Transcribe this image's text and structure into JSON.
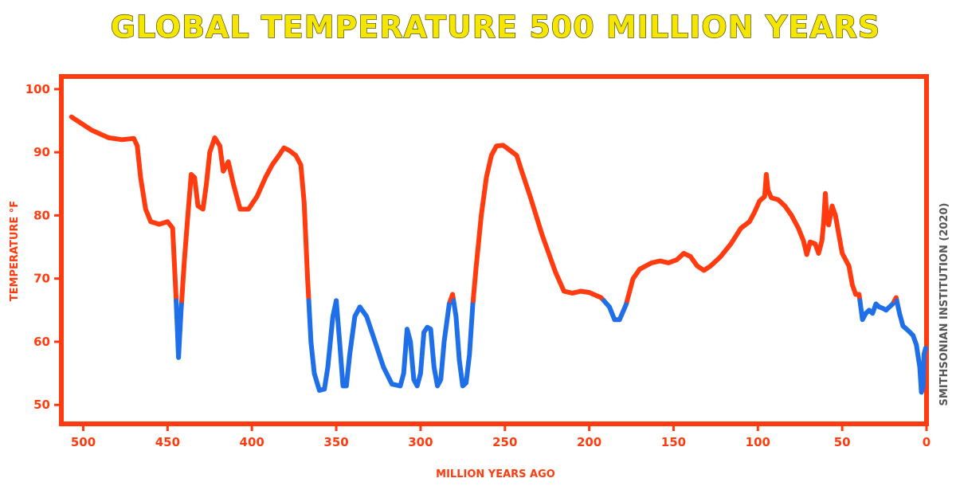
{
  "chart_data": {
    "type": "line",
    "title": "GLOBAL TEMPERATURE 500 MILLION YEARS",
    "xlabel": "MILLION YEARS AGO",
    "ylabel": "TEMPERATURE °F",
    "credit": "SMITHSONIAN INSTITUTION (2020)",
    "xlim": [
      513,
      0
    ],
    "ylim": [
      47,
      102
    ],
    "x_ticks": [
      500,
      450,
      400,
      350,
      300,
      250,
      200,
      150,
      100,
      50,
      0
    ],
    "y_ticks": [
      100,
      90,
      80,
      70,
      60,
      50
    ],
    "grid": false,
    "threshold": 66.5,
    "colors": {
      "warm": "#ff3b0f",
      "cold": "#1e6fe8",
      "axis": "#ff3b0f",
      "title": "#f5e600"
    },
    "series": [
      {
        "values": [
          [
            507,
            95.6
          ],
          [
            495,
            93.5
          ],
          [
            485,
            92.3
          ],
          [
            477,
            92.0
          ],
          [
            470,
            92.2
          ],
          [
            468,
            91.0
          ],
          [
            466,
            86.0
          ],
          [
            463,
            81.0
          ],
          [
            460,
            79.0
          ],
          [
            455,
            78.6
          ],
          [
            450,
            79.0
          ],
          [
            447,
            78.0
          ],
          [
            445,
            67.0
          ],
          [
            443.5,
            57.5
          ],
          [
            442,
            65.0
          ],
          [
            440,
            73.0
          ],
          [
            438,
            80.0
          ],
          [
            436,
            86.5
          ],
          [
            434,
            86.0
          ],
          [
            432,
            81.5
          ],
          [
            429,
            81.0
          ],
          [
            427,
            85.0
          ],
          [
            425,
            90.0
          ],
          [
            422,
            92.3
          ],
          [
            419,
            91.0
          ],
          [
            417,
            87.0
          ],
          [
            414,
            88.5
          ],
          [
            411,
            85.0
          ],
          [
            407,
            81.0
          ],
          [
            402,
            81.0
          ],
          [
            397,
            83.0
          ],
          [
            392,
            86.0
          ],
          [
            388,
            88.0
          ],
          [
            384,
            89.5
          ],
          [
            381,
            90.7
          ],
          [
            378,
            90.3
          ],
          [
            374,
            89.5
          ],
          [
            371,
            88.0
          ],
          [
            369,
            82.0
          ],
          [
            367,
            70.0
          ],
          [
            365,
            60.0
          ],
          [
            363,
            55.0
          ],
          [
            360,
            52.3
          ],
          [
            357,
            52.5
          ],
          [
            355,
            56.0
          ],
          [
            352,
            64.0
          ],
          [
            350,
            66.5
          ],
          [
            348,
            60.0
          ],
          [
            346,
            53.0
          ],
          [
            344,
            53.0
          ],
          [
            342,
            58.0
          ],
          [
            339,
            64.0
          ],
          [
            336,
            65.5
          ],
          [
            332,
            64.0
          ],
          [
            327,
            60.0
          ],
          [
            322,
            56.0
          ],
          [
            317,
            53.3
          ],
          [
            312,
            53.0
          ],
          [
            310,
            55.0
          ],
          [
            308,
            62.0
          ],
          [
            306,
            60.0
          ],
          [
            304,
            54.0
          ],
          [
            302,
            53.0
          ],
          [
            300,
            55.0
          ],
          [
            298,
            61.5
          ],
          [
            296,
            62.3
          ],
          [
            294,
            62.0
          ],
          [
            292,
            56.0
          ],
          [
            290,
            53.0
          ],
          [
            288,
            54.0
          ],
          [
            286,
            60.0
          ],
          [
            283,
            66.0
          ],
          [
            281,
            67.5
          ],
          [
            279,
            64.0
          ],
          [
            277,
            57.0
          ],
          [
            275,
            53.0
          ],
          [
            273,
            53.5
          ],
          [
            271,
            58.0
          ],
          [
            269,
            66.0
          ],
          [
            267,
            72.0
          ],
          [
            264,
            80.0
          ],
          [
            261,
            86.0
          ],
          [
            258,
            89.5
          ],
          [
            255,
            91.0
          ],
          [
            251,
            91.1
          ],
          [
            247,
            90.3
          ],
          [
            243,
            89.5
          ],
          [
            240,
            87.0
          ],
          [
            235,
            83.0
          ],
          [
            228,
            77.0
          ],
          [
            220,
            71.0
          ],
          [
            215,
            68.0
          ],
          [
            210,
            67.7
          ],
          [
            205,
            68.0
          ],
          [
            200,
            67.8
          ],
          [
            193,
            67.0
          ],
          [
            188,
            65.5
          ],
          [
            185,
            63.5
          ],
          [
            182,
            63.5
          ],
          [
            178,
            66.0
          ],
          [
            174,
            70.0
          ],
          [
            170,
            71.5
          ],
          [
            163,
            72.5
          ],
          [
            158,
            72.8
          ],
          [
            153,
            72.5
          ],
          [
            148,
            73.0
          ],
          [
            144,
            74.0
          ],
          [
            140,
            73.5
          ],
          [
            136,
            72.0
          ],
          [
            132,
            71.3
          ],
          [
            128,
            72.0
          ],
          [
            122,
            73.5
          ],
          [
            116,
            75.5
          ],
          [
            110,
            78.0
          ],
          [
            105,
            79.0
          ],
          [
            102,
            80.5
          ],
          [
            99,
            82.3
          ],
          [
            96,
            83.0
          ],
          [
            95,
            86.5
          ],
          [
            94,
            84.0
          ],
          [
            92,
            82.8
          ],
          [
            88,
            82.5
          ],
          [
            84,
            81.5
          ],
          [
            80,
            80.0
          ],
          [
            76,
            78.0
          ],
          [
            73,
            76.0
          ],
          [
            71,
            73.8
          ],
          [
            69,
            75.8
          ],
          [
            66,
            75.5
          ],
          [
            64,
            74.0
          ],
          [
            62,
            76.0
          ],
          [
            61,
            79.0
          ],
          [
            60,
            83.5
          ],
          [
            59,
            79.0
          ],
          [
            58,
            78.5
          ],
          [
            56,
            81.5
          ],
          [
            54,
            80.0
          ],
          [
            52,
            77.0
          ],
          [
            50,
            74.0
          ],
          [
            48,
            73.0
          ],
          [
            46,
            72.0
          ],
          [
            44,
            69.0
          ],
          [
            42,
            67.5
          ],
          [
            40,
            67.5
          ],
          [
            38,
            63.5
          ],
          [
            36,
            64.5
          ],
          [
            34,
            65.0
          ],
          [
            32,
            64.5
          ],
          [
            30,
            66.0
          ],
          [
            28,
            65.5
          ],
          [
            26,
            65.3
          ],
          [
            24,
            65.0
          ],
          [
            22,
            65.5
          ],
          [
            20,
            66.0
          ],
          [
            18,
            67.0
          ],
          [
            16,
            64.5
          ],
          [
            14,
            62.5
          ],
          [
            11,
            61.8
          ],
          [
            8,
            61.0
          ],
          [
            6,
            59.5
          ],
          [
            4,
            56.0
          ],
          [
            3,
            52.0
          ],
          [
            2,
            53.0
          ],
          [
            1.5,
            58.0
          ],
          [
            0.5,
            59.0
          ]
        ]
      }
    ]
  }
}
